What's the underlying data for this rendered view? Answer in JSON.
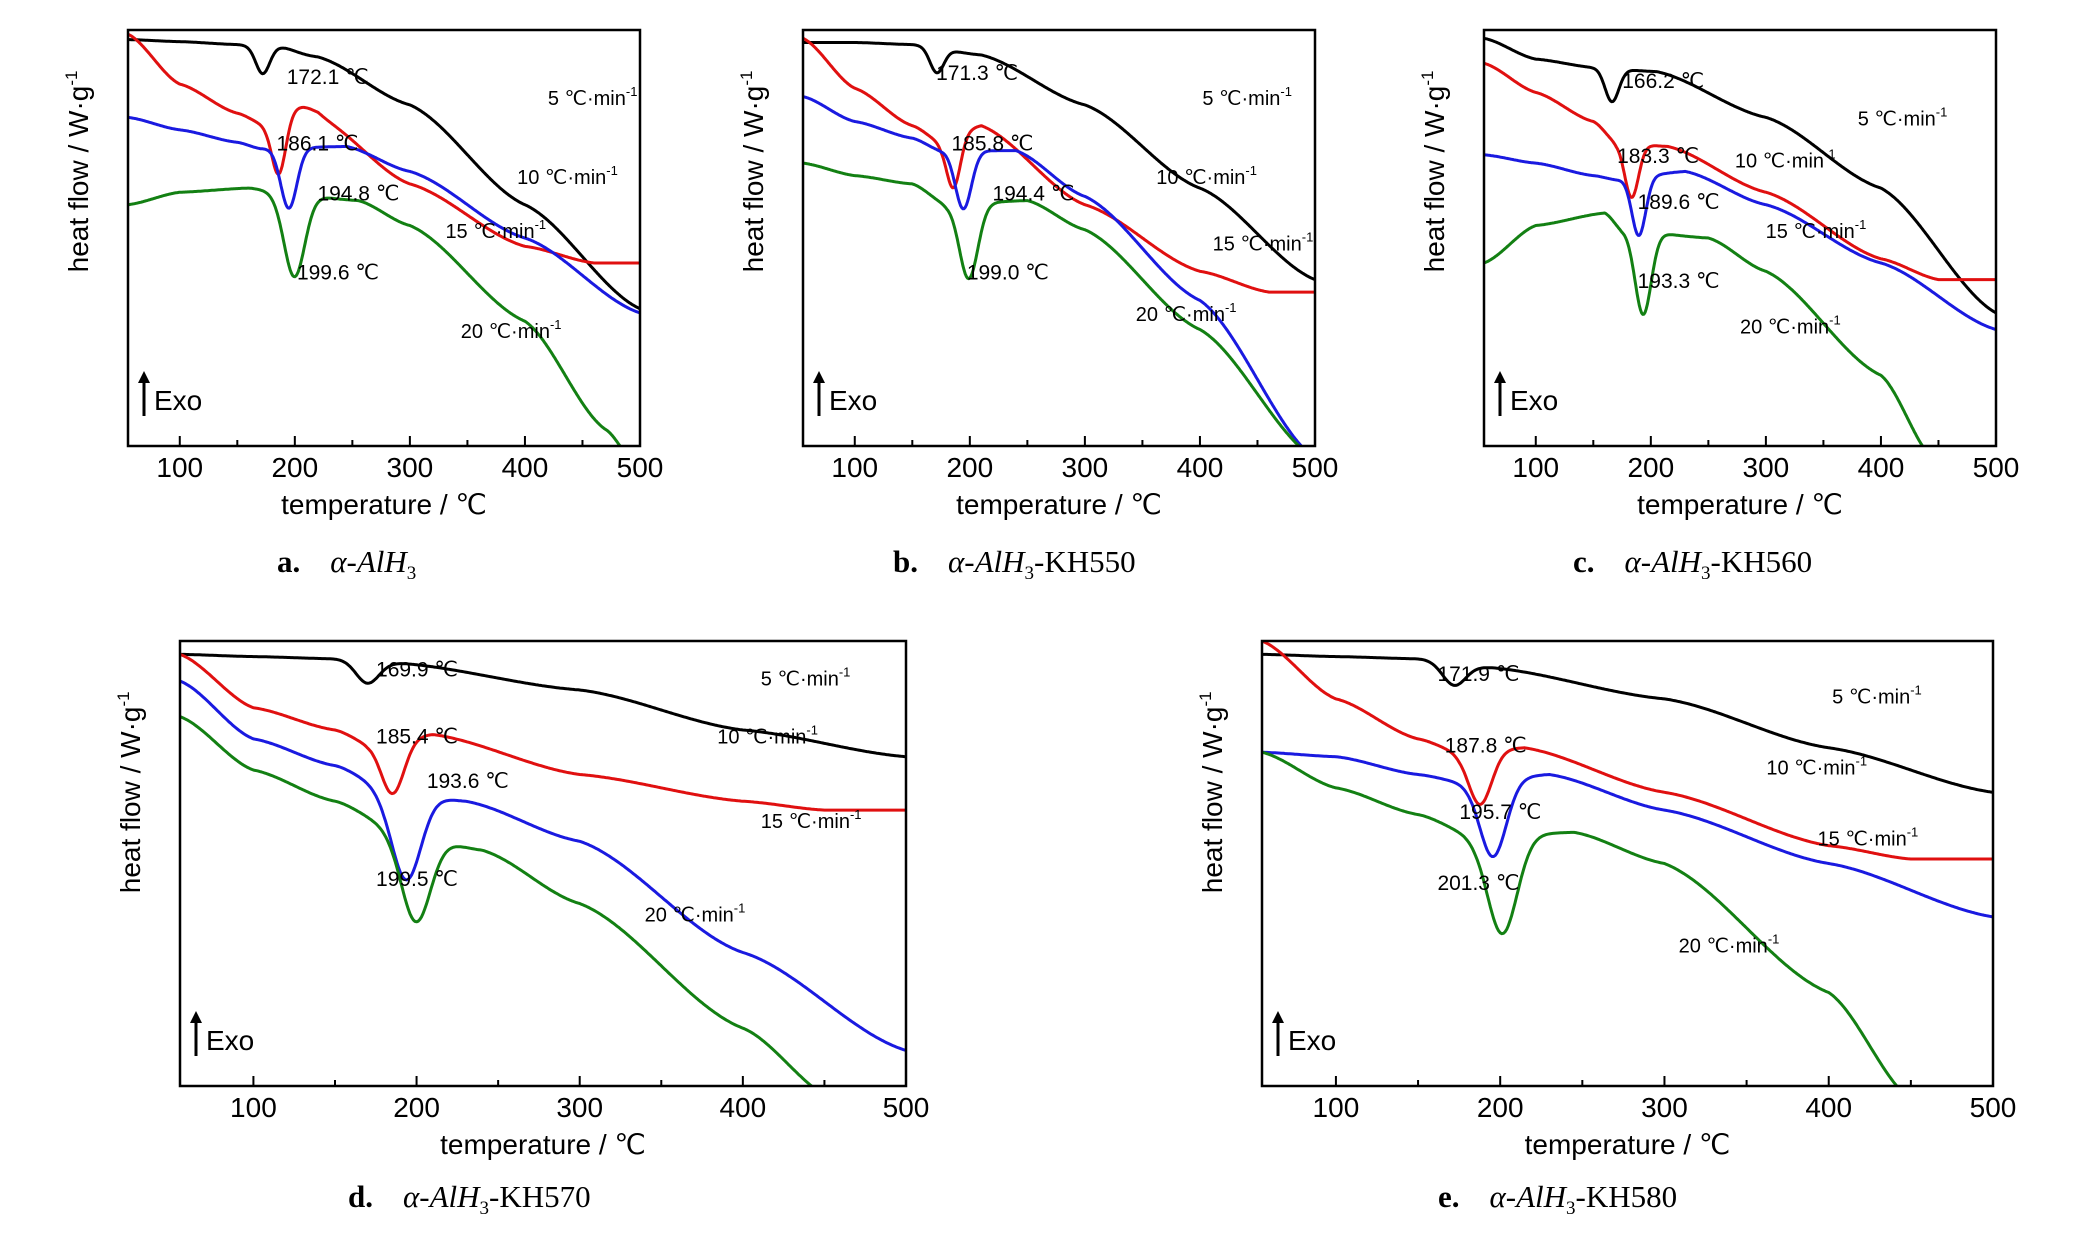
{
  "colors": {
    "5": "#000000",
    "10": "#e01010",
    "15": "#1a1ae0",
    "20": "#138013"
  },
  "chart_data": [
    {
      "type": "line",
      "caption_letter": "a.",
      "caption_sample": "α-AlH",
      "caption_sub": "3",
      "caption_suffix": "",
      "xlabel": "temperature / ℃",
      "ylabel": "heat flow / W·g",
      "ylabel_sup": "-1",
      "exo_label": "Exo",
      "xlim": [
        55,
        500
      ],
      "xticks": [
        100,
        200,
        300,
        400,
        500
      ],
      "series": [
        {
          "name": "5 ℃·min",
          "rate": "5",
          "peak": 172.1,
          "peak_label": "172.1 ℃"
        },
        {
          "name": "10 ℃·min",
          "rate": "10",
          "peak": 186.1,
          "peak_label": "186.1 ℃"
        },
        {
          "name": "15 ℃·min",
          "rate": "15",
          "peak": 194.8,
          "peak_label": "194.8 ℃"
        },
        {
          "name": "20 ℃·min",
          "rate": "20",
          "peak": 199.6,
          "peak_label": "199.6 ℃"
        }
      ]
    },
    {
      "type": "line",
      "caption_letter": "b.",
      "caption_sample": "α-AlH",
      "caption_sub": "3",
      "caption_suffix": "-KH550",
      "xlabel": "temperature / ℃",
      "ylabel": "heat flow / W·g",
      "ylabel_sup": "-1",
      "exo_label": "Exo",
      "xlim": [
        55,
        500
      ],
      "xticks": [
        100,
        200,
        300,
        400,
        500
      ],
      "series": [
        {
          "name": "5 ℃·min",
          "rate": "5",
          "peak": 171.3,
          "peak_label": "171.3 ℃"
        },
        {
          "name": "10 ℃·min",
          "rate": "10",
          "peak": 185.8,
          "peak_label": "185.8 ℃"
        },
        {
          "name": "15 ℃·min",
          "rate": "15",
          "peak": 194.4,
          "peak_label": "194.4 ℃"
        },
        {
          "name": "20 ℃·min",
          "rate": "20",
          "peak": 199.0,
          "peak_label": "199.0 ℃"
        }
      ]
    },
    {
      "type": "line",
      "caption_letter": "c.",
      "caption_sample": "α-AlH",
      "caption_sub": "3",
      "caption_suffix": "-KH560",
      "xlabel": "temperature / ℃",
      "ylabel": "heat flow / W·g",
      "ylabel_sup": "-1",
      "exo_label": "Exo",
      "xlim": [
        55,
        500
      ],
      "xticks": [
        100,
        200,
        300,
        400,
        500
      ],
      "series": [
        {
          "name": "5 ℃·min",
          "rate": "5",
          "peak": 166.2,
          "peak_label": "166.2 ℃"
        },
        {
          "name": "10 ℃·min",
          "rate": "10",
          "peak": 183.3,
          "peak_label": "183.3 ℃"
        },
        {
          "name": "15 ℃·min",
          "rate": "15",
          "peak": 189.6,
          "peak_label": "189.6 ℃"
        },
        {
          "name": "20 ℃·min",
          "rate": "20",
          "peak": 193.3,
          "peak_label": "193.3 ℃"
        }
      ]
    },
    {
      "type": "line",
      "caption_letter": "d.",
      "caption_sample": "α-AlH",
      "caption_sub": "3",
      "caption_suffix": "-KH570",
      "xlabel": "temperature / ℃",
      "ylabel": "heat flow / W·g",
      "ylabel_sup": "-1",
      "exo_label": "Exo",
      "xlim": [
        55,
        500
      ],
      "xticks": [
        100,
        200,
        300,
        400,
        500
      ],
      "series": [
        {
          "name": "5 ℃·min",
          "rate": "5",
          "peak": 169.9,
          "peak_label": "169.9 ℃"
        },
        {
          "name": "10 ℃·min",
          "rate": "10",
          "peak": 185.4,
          "peak_label": "185.4 ℃"
        },
        {
          "name": "15 ℃·min",
          "rate": "15",
          "peak": 193.6,
          "peak_label": "193.6 ℃"
        },
        {
          "name": "20 ℃·min",
          "rate": "20",
          "peak": 199.5,
          "peak_label": "199.5 ℃"
        }
      ]
    },
    {
      "type": "line",
      "caption_letter": "e.",
      "caption_sample": "α-AlH",
      "caption_sub": "3",
      "caption_suffix": "-KH580",
      "xlabel": "temperature / ℃",
      "ylabel": "heat flow / W·g",
      "ylabel_sup": "-1",
      "exo_label": "Exo",
      "xlim": [
        55,
        500
      ],
      "xticks": [
        100,
        200,
        300,
        400,
        500
      ],
      "series": [
        {
          "name": "5 ℃·min",
          "rate": "5",
          "peak": 171.9,
          "peak_label": "171.9 ℃"
        },
        {
          "name": "10 ℃·min",
          "rate": "10",
          "peak": 187.8,
          "peak_label": "187.8 ℃"
        },
        {
          "name": "15 ℃·min",
          "rate": "15",
          "peak": 195.7,
          "peak_label": "195.7 ℃"
        },
        {
          "name": "20 ℃·min",
          "rate": "20",
          "peak": 201.3,
          "peak_label": "201.3 ℃"
        }
      ]
    }
  ]
}
